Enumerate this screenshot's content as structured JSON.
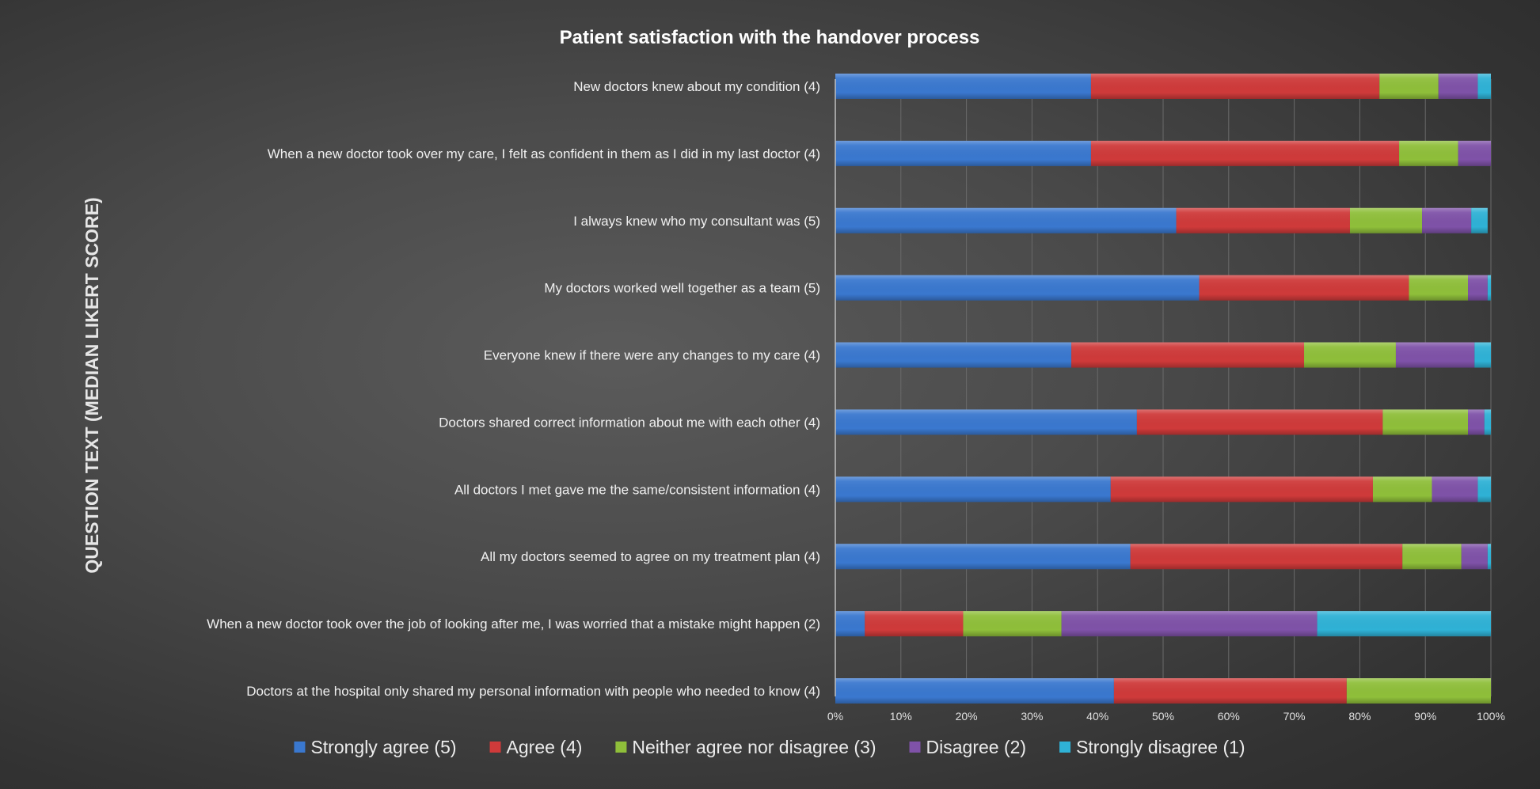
{
  "chart_data": {
    "type": "bar",
    "orientation": "horizontal",
    "stacking": "percent",
    "title": "Patient satisfaction with the handover process",
    "ylabel": "QUESTION TEXT (MEDIAN LIKERT SCORE)",
    "xlabel": "",
    "xlim": [
      0,
      100
    ],
    "x_ticks": [
      "0%",
      "10%",
      "20%",
      "30%",
      "40%",
      "50%",
      "60%",
      "70%",
      "80%",
      "90%",
      "100%"
    ],
    "grid": true,
    "legend_position": "bottom",
    "categories": [
      "New doctors knew about my condition (4)",
      "When a new doctor took over my care, I felt as confident in them as I did in my last doctor (4)",
      "I always knew who my consultant was (5)",
      "My doctors worked well together as a team (5)",
      "Everyone knew if there were any changes to my care  (4)",
      "Doctors shared correct information about me with each other (4)",
      "All doctors I met gave me the same/consistent information  (4)",
      "All my doctors seemed to agree on my treatment plan  (4)",
      "When a new doctor took over the job of looking after me, I was worried that a mistake might happen (2)",
      "Doctors at the hospital only shared my personal information with people who needed to know (4)"
    ],
    "series": [
      {
        "name": "Strongly agree (5)",
        "color": "#3a78cf",
        "values": [
          39,
          39,
          52,
          55.5,
          36,
          46,
          42,
          45,
          4.5,
          42.5
        ]
      },
      {
        "name": "Agree (4)",
        "color": "#cf3a3a",
        "values": [
          44,
          47,
          26.5,
          32,
          35.5,
          37.5,
          40,
          41.5,
          15,
          35.5
        ]
      },
      {
        "name": "Neither agree nor disagree (3)",
        "color": "#8fbf3a",
        "values": [
          9,
          9,
          11,
          9,
          14,
          13,
          9,
          9,
          15,
          22
        ]
      },
      {
        "name": "Disagree (2)",
        "color": "#7f52a8",
        "values": [
          6,
          5,
          7.5,
          3,
          12,
          2.5,
          7,
          4,
          39,
          0
        ]
      },
      {
        "name": "Strongly disagree (1)",
        "color": "#2fb2d6",
        "values": [
          2,
          0,
          2.5,
          0.5,
          2.5,
          1,
          2,
          0.5,
          26.5,
          0
        ]
      }
    ]
  }
}
